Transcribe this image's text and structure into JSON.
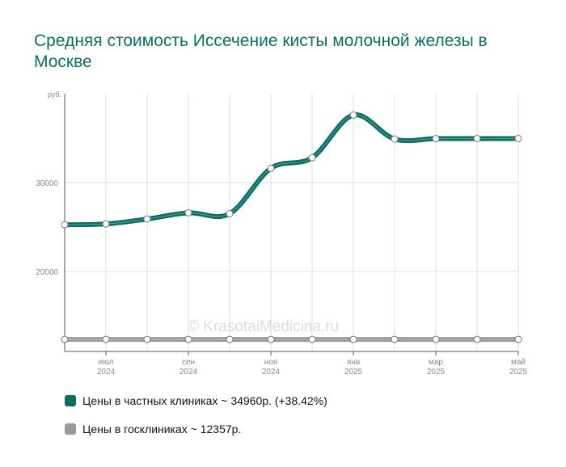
{
  "title": "Средняя стоимость Иссечение кисты молочной железы в Москве",
  "watermark": "© KrasotaiMedicina.ru",
  "chart_data": {
    "type": "line",
    "y_unit_label": "руб.",
    "ylim": [
      11000,
      40000
    ],
    "y_ticks": [
      {
        "value": 20000,
        "label": "20000"
      },
      {
        "value": 30000,
        "label": "30000"
      }
    ],
    "x_count": 12,
    "x_ticks": [
      {
        "index": 1,
        "month": "июл",
        "year": "2024"
      },
      {
        "index": 3,
        "month": "сен",
        "year": "2024"
      },
      {
        "index": 5,
        "month": "ноя",
        "year": "2024"
      },
      {
        "index": 7,
        "month": "янв",
        "year": "2025"
      },
      {
        "index": 9,
        "month": "мар",
        "year": "2025"
      },
      {
        "index": 11,
        "month": "май",
        "year": "2025"
      }
    ],
    "grid": true,
    "legend_position": "bottom",
    "series": [
      {
        "name": "Цены в частных клиниках",
        "color": "#0b6e65",
        "values": [
          25260,
          25350,
          25900,
          26600,
          26500,
          31600,
          32800,
          37600,
          34900,
          34950,
          34950,
          34960
        ]
      },
      {
        "name": "Цены в госклиниках",
        "color": "#9a9a9a",
        "values": [
          12357,
          12357,
          12357,
          12357,
          12357,
          12357,
          12357,
          12357,
          12357,
          12357,
          12357,
          12357
        ]
      }
    ]
  },
  "legend": [
    {
      "text": "Цены в частных клиниках ~ 34960р. (+38.42%)",
      "color": "#0b6e65"
    },
    {
      "text": "Цены в госклиниках ~ 12357р.",
      "color": "#9a9a9a"
    }
  ]
}
